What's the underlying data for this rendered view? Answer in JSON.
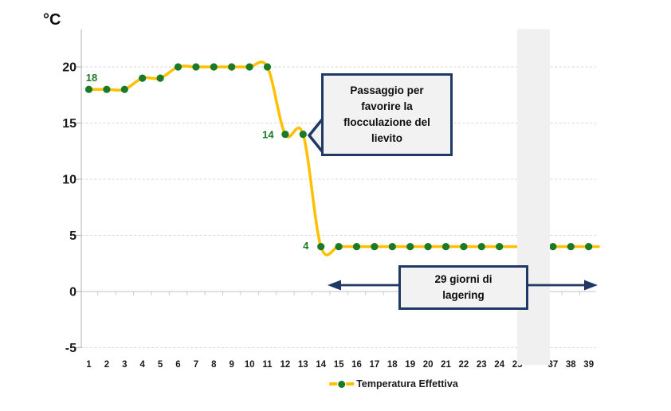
{
  "chart_data": {
    "type": "line",
    "title": "",
    "unit_label": "°C",
    "xlabel": "",
    "ylabel": "°C",
    "categories": [
      "1",
      "2",
      "3",
      "4",
      "5",
      "6",
      "7",
      "8",
      "9",
      "10",
      "11",
      "12",
      "13",
      "14",
      "15",
      "16",
      "17",
      "18",
      "19",
      "20",
      "21",
      "22",
      "23",
      "24",
      "25",
      "",
      "37",
      "38",
      "39"
    ],
    "series": [
      {
        "name": "Temperatura Effettiva",
        "values": [
          18,
          18,
          18,
          19,
          19,
          20,
          20,
          20,
          20,
          20,
          20,
          14,
          14,
          4,
          4,
          4,
          4,
          4,
          4,
          4,
          4,
          4,
          4,
          4,
          4,
          4,
          4,
          4,
          4
        ]
      }
    ],
    "y_ticks": [
      20,
      15,
      10,
      5,
      0,
      -5
    ],
    "ylim": [
      -5,
      23.3
    ],
    "grid": "horizontal-dashed",
    "legend_position": "bottom",
    "axis_break_band": {
      "after_category": "25",
      "before_category": "37"
    },
    "point_labels": [
      {
        "text": "18",
        "index": 0
      },
      {
        "text": "14",
        "index": 11
      },
      {
        "text": "4",
        "index": 13
      }
    ],
    "annotations": {
      "callout": "Passaggio per\nfavorire la\nflocculazione del\nlievito",
      "lagering": "29 giorni di\nlagering"
    },
    "colors": {
      "line": "#FFC000",
      "marker": "#1B7A28",
      "point_label": "#1B7A28",
      "annotation_border": "#1F3864",
      "annotation_fill": "#F2F2F2",
      "band": "#F0F0F0",
      "grid": "#D9D9D9",
      "axis": "#BFBFBF",
      "tick_text": "#1a1a1a"
    }
  },
  "legend": {
    "label": "Temperatura Effettiva"
  }
}
